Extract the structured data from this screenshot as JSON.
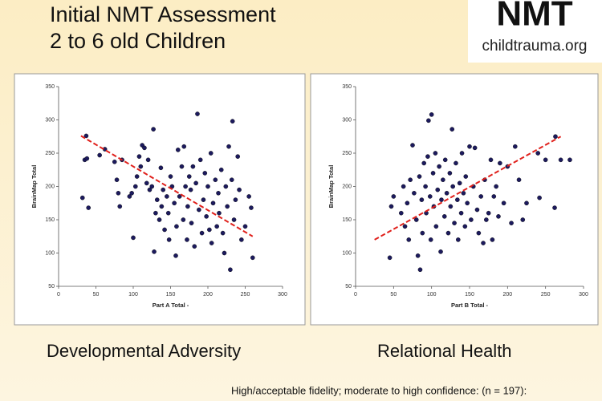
{
  "slide": {
    "title_lines": [
      "Initial NMT Assessment",
      "2 to 6 old Children"
    ],
    "logo": {
      "mark": "NMT",
      "url": "childtrauma.org"
    },
    "captions": [
      "Developmental Adversity",
      "Relational Health"
    ],
    "footnote": "High/acceptable fidelity; moderate to high confidence: (n = 197):"
  },
  "chart_data": [
    {
      "type": "scatter",
      "x_label": "Part A Total -",
      "y_label": "BrainMap Total",
      "color": "#1c1a5e",
      "x": [
        32,
        35,
        37,
        38,
        40,
        55,
        62,
        75,
        78,
        80,
        82,
        85,
        95,
        98,
        100,
        103,
        105,
        108,
        110,
        112,
        115,
        118,
        120,
        122,
        125,
        127,
        128,
        130,
        132,
        135,
        137,
        138,
        140,
        142,
        145,
        147,
        148,
        150,
        152,
        155,
        157,
        158,
        160,
        162,
        165,
        167,
        168,
        170,
        172,
        173,
        175,
        177,
        178,
        180,
        182,
        184,
        186,
        188,
        190,
        192,
        194,
        196,
        198,
        200,
        202,
        204,
        205,
        207,
        210,
        212,
        214,
        215,
        218,
        220,
        222,
        224,
        226,
        228,
        230,
        232,
        233,
        235,
        237,
        240,
        242,
        245,
        250,
        255,
        258,
        260
      ],
      "y": [
        183,
        240,
        276,
        242,
        168,
        247,
        256,
        237,
        210,
        190,
        170,
        240,
        185,
        190,
        123,
        200,
        215,
        245,
        230,
        262,
        258,
        205,
        240,
        195,
        200,
        286,
        102,
        160,
        180,
        150,
        228,
        170,
        195,
        135,
        185,
        160,
        120,
        215,
        200,
        175,
        96,
        140,
        255,
        185,
        230,
        150,
        260,
        200,
        120,
        170,
        215,
        195,
        145,
        230,
        110,
        205,
        309,
        165,
        240,
        130,
        180,
        220,
        155,
        200,
        135,
        250,
        115,
        175,
        210,
        140,
        190,
        160,
        225,
        130,
        100,
        200,
        170,
        260,
        75,
        210,
        298,
        150,
        180,
        245,
        195,
        120,
        140,
        185,
        168,
        93
      ],
      "trendline": {
        "color": "#e0201b",
        "x": [
          30,
          260
        ],
        "y": [
          276,
          125
        ]
      },
      "xlim": [
        0,
        300
      ],
      "ylim": [
        50,
        350
      ],
      "xticks": [
        0,
        50,
        100,
        150,
        200,
        250,
        300
      ],
      "yticks": [
        50,
        100,
        150,
        200,
        250,
        300,
        350
      ]
    },
    {
      "type": "scatter",
      "x_label": "Part B Total -",
      "y_label": "BrainMap Total",
      "color": "#1c1a5e",
      "x": [
        45,
        47,
        50,
        60,
        63,
        65,
        68,
        70,
        72,
        75,
        77,
        80,
        82,
        84,
        85,
        87,
        88,
        90,
        92,
        93,
        95,
        96,
        98,
        99,
        100,
        102,
        103,
        105,
        106,
        108,
        110,
        112,
        113,
        115,
        117,
        118,
        120,
        122,
        124,
        125,
        127,
        128,
        130,
        132,
        134,
        135,
        137,
        139,
        140,
        142,
        144,
        145,
        147,
        150,
        152,
        155,
        157,
        160,
        162,
        165,
        168,
        170,
        172,
        175,
        178,
        180,
        182,
        185,
        188,
        190,
        195,
        200,
        205,
        210,
        215,
        220,
        225,
        240,
        242,
        250,
        262,
        263,
        270,
        282
      ],
      "y": [
        93,
        170,
        185,
        160,
        200,
        140,
        175,
        120,
        210,
        262,
        190,
        150,
        96,
        215,
        75,
        180,
        130,
        235,
        200,
        160,
        245,
        299,
        185,
        120,
        308,
        220,
        170,
        250,
        140,
        195,
        230,
        102,
        180,
        210,
        155,
        240,
        190,
        130,
        220,
        170,
        286,
        200,
        145,
        235,
        180,
        120,
        205,
        160,
        250,
        190,
        140,
        215,
        175,
        260,
        150,
        200,
        258,
        165,
        130,
        185,
        115,
        210,
        150,
        160,
        240,
        120,
        185,
        200,
        155,
        235,
        175,
        230,
        145,
        260,
        210,
        150,
        175,
        250,
        183,
        240,
        168,
        275,
        240,
        240
      ],
      "trendline": {
        "color": "#e0201b",
        "x": [
          25,
          270
        ],
        "y": [
          120,
          275
        ]
      },
      "xlim": [
        0,
        300
      ],
      "ylim": [
        50,
        350
      ],
      "xticks": [
        0,
        50,
        100,
        150,
        200,
        250,
        300
      ],
      "yticks": [
        50,
        100,
        150,
        200,
        250,
        300,
        350
      ]
    }
  ]
}
